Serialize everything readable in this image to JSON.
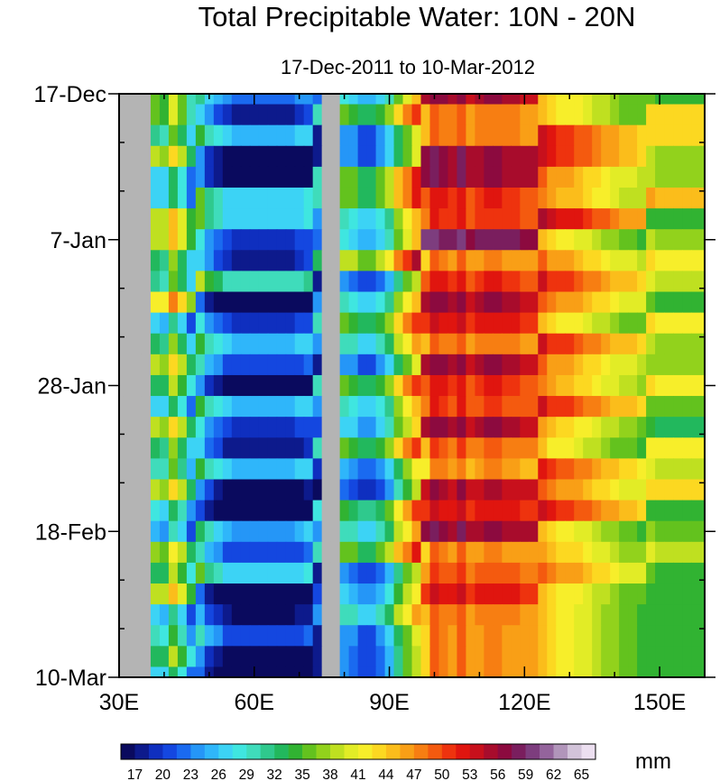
{
  "chart_data": {
    "type": "heatmap",
    "title": "Total Precipitable Water: 10N - 20N",
    "subtitle": "17-Dec-2011 to 10-Mar-2012",
    "x_axis": {
      "range": [
        30,
        160
      ],
      "ticks": [
        30,
        60,
        90,
        120,
        150
      ],
      "tick_labels": [
        "30E",
        "60E",
        "90E",
        "120E",
        "150E"
      ],
      "minor_step": 10
    },
    "y_axis": {
      "range_days": [
        0,
        84
      ],
      "ticks_days": [
        0,
        21,
        42,
        63,
        84
      ],
      "tick_labels": [
        "17-Dec",
        "7-Jan",
        "28-Jan",
        "18-Feb",
        "10-Mar"
      ],
      "minor_step_days": 7
    },
    "colorbar": {
      "unit_label": "mm",
      "min": 15.5,
      "max": 66.5,
      "step": 1.5,
      "tick_values": [
        17,
        20,
        23,
        26,
        29,
        32,
        35,
        38,
        41,
        44,
        47,
        50,
        53,
        56,
        59,
        62,
        65
      ],
      "tick_labels": [
        "17",
        "20",
        "23",
        "26",
        "29",
        "32",
        "35",
        "38",
        "41",
        "44",
        "47",
        "50",
        "53",
        "56",
        "59",
        "62",
        "65"
      ],
      "colors": [
        "#0a0a5e",
        "#0d1a8c",
        "#0f2fbf",
        "#1447e0",
        "#1a6af0",
        "#2596f7",
        "#2fb6fa",
        "#3cd3f5",
        "#3fe6e0",
        "#3fdcbb",
        "#2fc98d",
        "#22b85d",
        "#31b332",
        "#63c21e",
        "#92d21c",
        "#bfe020",
        "#e2ec26",
        "#f7ee2a",
        "#fcd821",
        "#fbbd1b",
        "#f99f16",
        "#f77e12",
        "#f45a0f",
        "#ee330e",
        "#e0150f",
        "#c8101c",
        "#a80c2c",
        "#8c0a3f",
        "#7a1e5e",
        "#7d3d7e",
        "#94649c",
        "#b195ba",
        "#d2c3d9",
        "#ecdff0"
      ]
    },
    "masked_color": "#b4b4b4",
    "longitudes": [
      30,
      32,
      34,
      36,
      38,
      40,
      42,
      44,
      46,
      48,
      50,
      52,
      54,
      56,
      58,
      60,
      62,
      64,
      66,
      68,
      70,
      72,
      74,
      76,
      78,
      80,
      82,
      84,
      86,
      88,
      90,
      92,
      94,
      96,
      98,
      100,
      102,
      104,
      106,
      108,
      110,
      112,
      114,
      116,
      118,
      120,
      122,
      124,
      126,
      128,
      130,
      132,
      134,
      136,
      138,
      140,
      142,
      144,
      146,
      148,
      150,
      152,
      154,
      156,
      158,
      160
    ],
    "days": [
      0,
      3,
      6,
      9,
      12,
      15,
      18,
      21,
      24,
      27,
      30,
      33,
      36,
      39,
      42,
      45,
      48,
      51,
      54,
      57,
      60,
      63,
      66,
      69,
      72,
      75,
      78,
      81,
      84
    ],
    "profile_mean_mm": [
      null,
      null,
      null,
      null,
      35,
      34,
      40,
      36,
      30,
      31,
      27,
      25,
      23,
      22,
      22,
      22,
      22,
      22,
      22,
      22,
      23,
      24,
      26,
      null,
      null,
      32,
      31,
      29,
      29,
      31,
      34,
      40,
      44,
      48,
      52,
      55,
      54,
      53,
      55,
      52,
      53,
      54,
      54,
      53,
      53,
      52,
      52,
      51,
      49,
      48,
      48,
      47,
      46,
      45,
      44,
      43,
      42,
      42,
      41,
      41,
      40,
      40,
      40,
      40,
      40,
      40
    ],
    "masked_longitude_bands": [
      [
        30,
        37
      ],
      [
        74.5,
        79
      ]
    ],
    "event_amplitude_mm": [
      0,
      -4,
      3,
      -8,
      -8,
      4,
      4,
      -3,
      -4,
      7,
      -9,
      -3,
      3,
      -2,
      -8,
      3,
      -3,
      -5,
      3,
      -7,
      -10,
      2,
      -2,
      4,
      -9,
      -6,
      -2,
      -8,
      -9
    ]
  }
}
